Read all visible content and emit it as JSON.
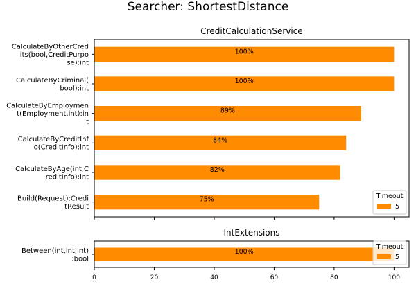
{
  "suptitle": "Searcher: ShortestDistance",
  "colors": {
    "bar": "#ff8c00",
    "axis": "#000000",
    "legend_border": "#cccccc"
  },
  "chart_data": [
    {
      "type": "bar",
      "orientation": "horizontal",
      "title": "CreditCalculationService",
      "categories": [
        [
          "CalculateByOtherCred",
          "its(bool,CreditPurpo",
          "se):int"
        ],
        [
          "CalculateByCriminal(",
          "bool):int"
        ],
        [
          "CalculateByEmploymen",
          "t(Employment,int):in",
          "t"
        ],
        [
          "CalculateByCreditInf",
          "o(CreditInfo):int"
        ],
        [
          "CalculateByAge(int,C",
          "reditInfo):int"
        ],
        [
          "Build(Request):Credi",
          "tResult"
        ]
      ],
      "series": [
        {
          "name": "5",
          "values": [
            100,
            100,
            89,
            84,
            82,
            75
          ],
          "labels": [
            "100%",
            "100%",
            "89%",
            "84%",
            "82%",
            "75%"
          ]
        }
      ],
      "legend": {
        "title": "Timeout",
        "placement": "lower-right"
      },
      "xlim": [
        0,
        105
      ],
      "xticks": [
        0,
        20,
        40,
        60,
        80,
        100
      ],
      "show_xtick_labels": false
    },
    {
      "type": "bar",
      "orientation": "horizontal",
      "title": "IntExtensions",
      "categories": [
        [
          "Between(int,int,int)",
          ":bool"
        ]
      ],
      "series": [
        {
          "name": "5",
          "values": [
            100
          ],
          "labels": [
            "100%"
          ]
        }
      ],
      "legend": {
        "title": "Timeout",
        "placement": "lower-right"
      },
      "xlim": [
        0,
        105
      ],
      "xticks": [
        0,
        20,
        40,
        60,
        80,
        100
      ],
      "show_xtick_labels": true
    }
  ]
}
